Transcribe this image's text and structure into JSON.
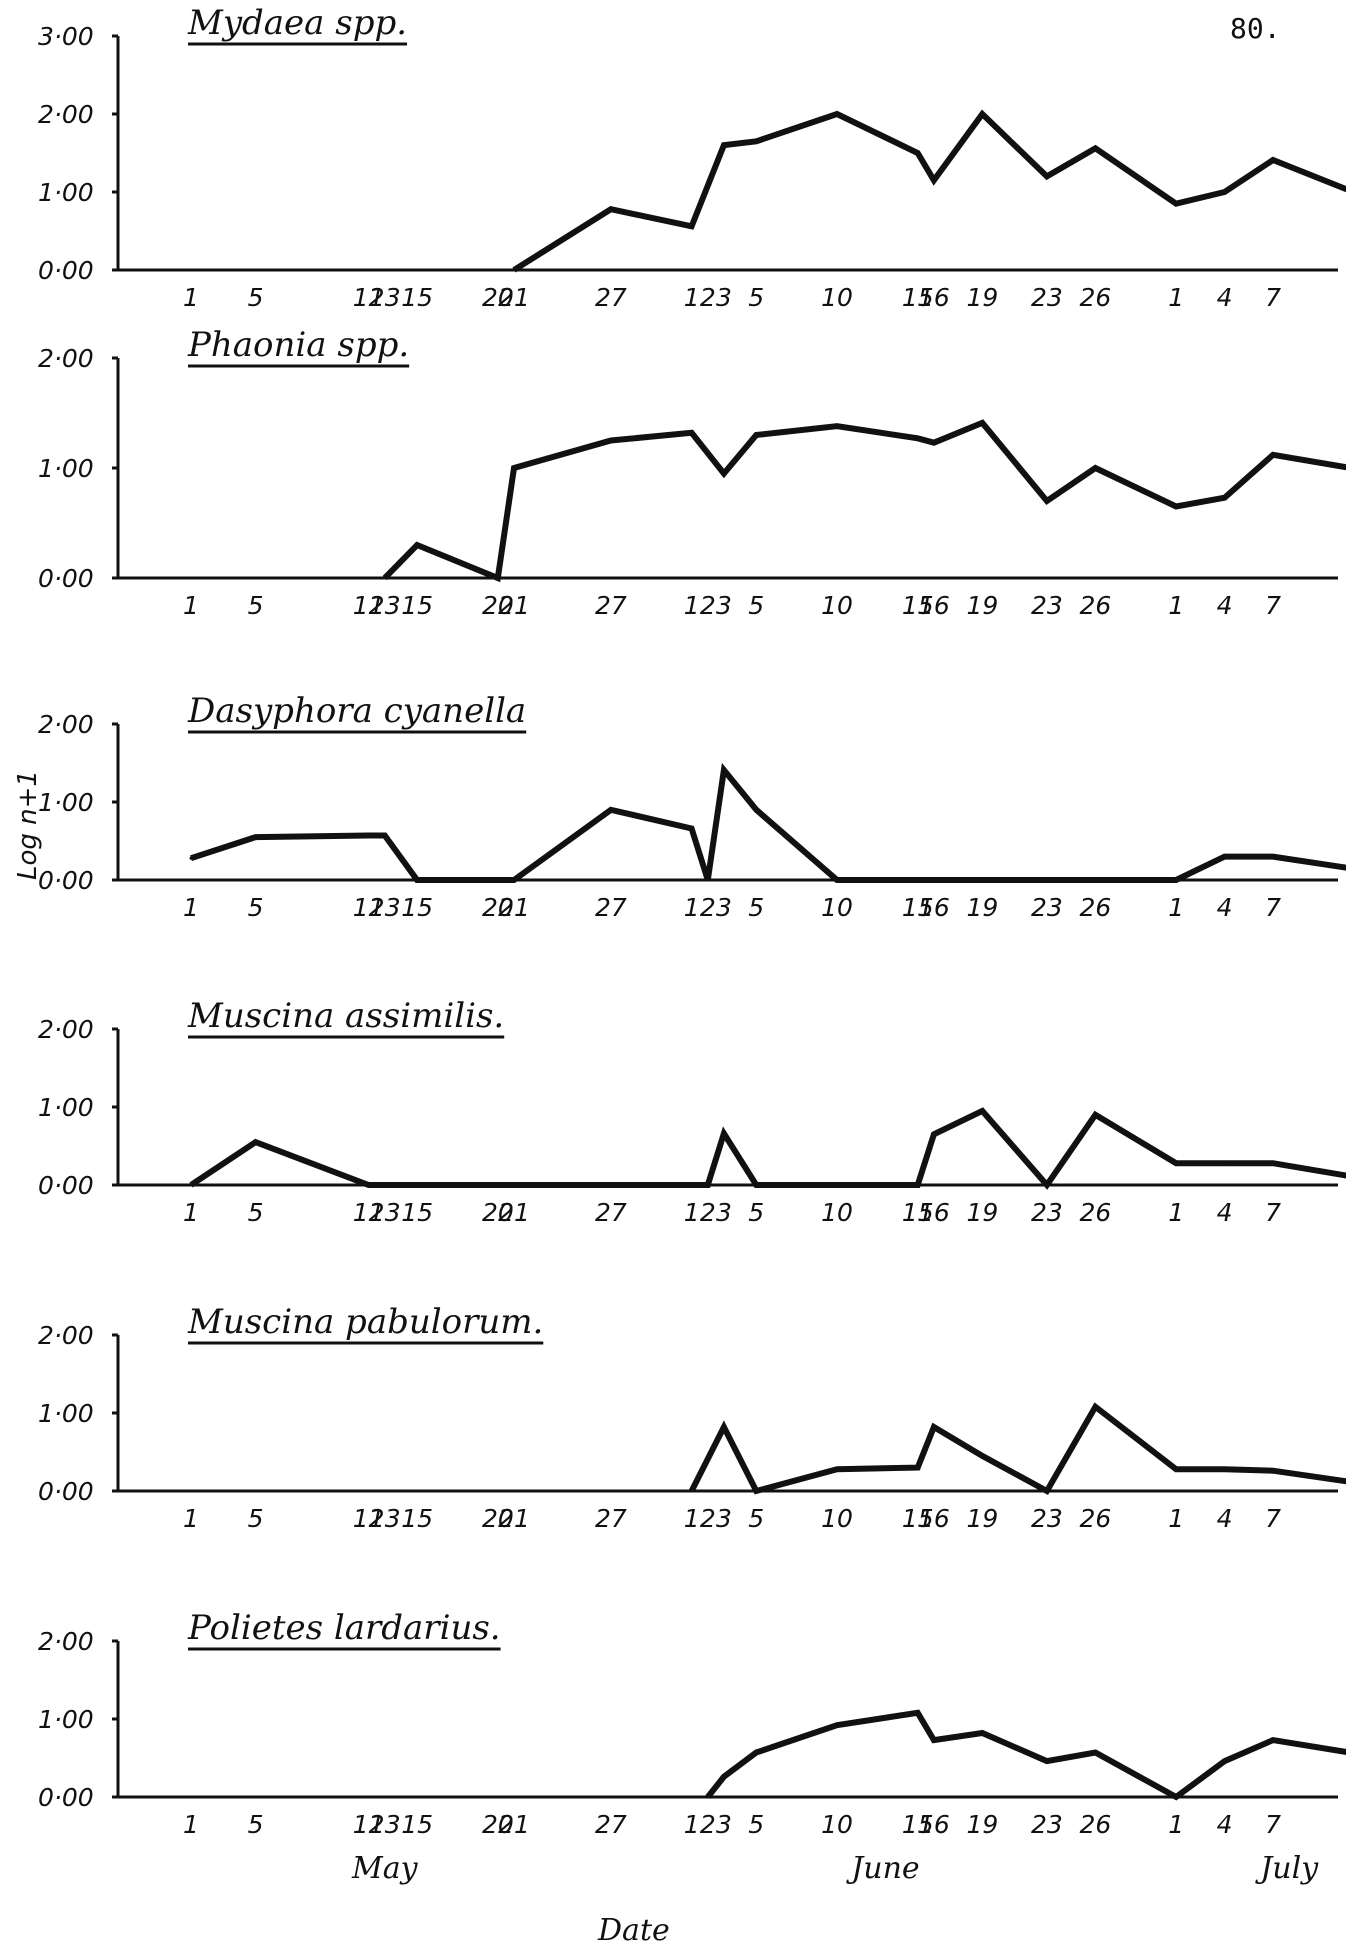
{
  "page_number": "80.",
  "y_axis_label": "Log n+1",
  "x_axis_label": "Date",
  "months": [
    "May",
    "June",
    "July"
  ],
  "chart_data": [
    {
      "type": "line",
      "title": "Mydaea spp.",
      "yticks": [
        "3·00",
        "2·00",
        "1·00",
        "0·00"
      ],
      "ylim": [
        0,
        3
      ],
      "x_tick_labels": [
        "1",
        "5",
        "12",
        "13",
        "15",
        "20",
        "21",
        "27",
        "1",
        "2",
        "3",
        "5",
        "10",
        "15",
        "16",
        "19",
        "23",
        "26",
        "1",
        "4",
        "7",
        "15"
      ],
      "points": [
        [
          "May 21",
          0.0
        ],
        [
          "May 27",
          0.78
        ],
        [
          "Jun 1",
          0.56
        ],
        [
          "Jun 3",
          1.6
        ],
        [
          "Jun 5",
          1.65
        ],
        [
          "Jun 10",
          2.0
        ],
        [
          "Jun 15",
          1.5
        ],
        [
          "Jun 16",
          1.15
        ],
        [
          "Jun 19",
          2.0
        ],
        [
          "Jun 23",
          1.2
        ],
        [
          "Jun 26",
          1.56
        ],
        [
          "Jul 1",
          0.85
        ],
        [
          "Jul 4",
          1.0
        ],
        [
          "Jul 7",
          1.41
        ],
        [
          "Jul 15",
          0.75
        ]
      ]
    },
    {
      "type": "line",
      "title": "Phaonia spp.",
      "yticks": [
        "2·00",
        "1·00",
        "0·00"
      ],
      "ylim": [
        0,
        2
      ],
      "x_tick_labels": [
        "1",
        "5",
        "12",
        "13",
        "15",
        "20",
        "21",
        "27",
        "1",
        "2",
        "3",
        "5",
        "10",
        "15",
        "16",
        "19",
        "23",
        "26",
        "1",
        "4",
        "7",
        "15"
      ],
      "points": [
        [
          "May 13",
          0.0
        ],
        [
          "May 15",
          0.3
        ],
        [
          "May 20",
          0.0
        ],
        [
          "May 21",
          1.0
        ],
        [
          "May 27",
          1.25
        ],
        [
          "Jun 1",
          1.32
        ],
        [
          "Jun 3",
          0.95
        ],
        [
          "Jun 5",
          1.3
        ],
        [
          "Jun 10",
          1.38
        ],
        [
          "Jun 15",
          1.27
        ],
        [
          "Jun 16",
          1.23
        ],
        [
          "Jun 19",
          1.41
        ],
        [
          "Jun 23",
          0.7
        ],
        [
          "Jun 26",
          1.0
        ],
        [
          "Jul 1",
          0.65
        ],
        [
          "Jul 4",
          0.73
        ],
        [
          "Jul 7",
          1.12
        ],
        [
          "Jul 15",
          0.92
        ]
      ]
    },
    {
      "type": "line",
      "title": "Dasyphora cyanella",
      "yticks": [
        "2·00",
        "1·00",
        "0·00"
      ],
      "ylim": [
        0,
        2
      ],
      "x_tick_labels": [
        "1",
        "5",
        "12",
        "13",
        "15",
        "20",
        "21",
        "27",
        "1",
        "2",
        "3",
        "5",
        "10",
        "15",
        "16",
        "19",
        "23",
        "26",
        "1",
        "4",
        "7",
        "15"
      ],
      "points": [
        [
          "May 1",
          0.28
        ],
        [
          "May 5",
          0.55
        ],
        [
          "May 12",
          0.57
        ],
        [
          "May 13",
          0.57
        ],
        [
          "May 15",
          0.0
        ],
        [
          "May 21",
          0.0
        ],
        [
          "May 27",
          0.9
        ],
        [
          "Jun 1",
          0.66
        ],
        [
          "Jun 2",
          0.0
        ],
        [
          "Jun 3",
          1.41
        ],
        [
          "Jun 5",
          0.9
        ],
        [
          "Jun 10",
          0.0
        ],
        [
          "Jul 1",
          0.0
        ],
        [
          "Jul 4",
          0.3
        ],
        [
          "Jul 7",
          0.3
        ],
        [
          "Jul 15",
          0.05
        ]
      ]
    },
    {
      "type": "line",
      "title": "Muscina assimilis.",
      "yticks": [
        "2·00",
        "1·00",
        "0·00"
      ],
      "ylim": [
        0,
        2
      ],
      "x_tick_labels": [
        "1",
        "5",
        "12",
        "13",
        "15",
        "20",
        "21",
        "27",
        "1",
        "2",
        "3",
        "5",
        "10",
        "15",
        "16",
        "19",
        "23",
        "26",
        "1",
        "4",
        "7",
        "15"
      ],
      "points": [
        [
          "May 1",
          0.0
        ],
        [
          "May 5",
          0.55
        ],
        [
          "May 12",
          0.0
        ],
        [
          "Jun 2",
          0.0
        ],
        [
          "Jun 3",
          0.66
        ],
        [
          "Jun 5",
          0.0
        ],
        [
          "Jun 15",
          0.0
        ],
        [
          "Jun 16",
          0.65
        ],
        [
          "Jun 19",
          0.95
        ],
        [
          "Jun 23",
          0.0
        ],
        [
          "Jun 26",
          0.9
        ],
        [
          "Jul 1",
          0.28
        ],
        [
          "Jul 4",
          0.28
        ],
        [
          "Jul 7",
          0.28
        ],
        [
          "Jul 15",
          0.0
        ]
      ]
    },
    {
      "type": "line",
      "title": "Muscina pabulorum.",
      "yticks": [
        "2·00",
        "1·00",
        "0·00"
      ],
      "ylim": [
        0,
        2
      ],
      "x_tick_labels": [
        "1",
        "5",
        "12",
        "13",
        "15",
        "20",
        "21",
        "27",
        "1",
        "2",
        "3",
        "5",
        "10",
        "15",
        "16",
        "19",
        "23",
        "26",
        "1",
        "4",
        "7",
        "15"
      ],
      "points": [
        [
          "Jun 1",
          0.0
        ],
        [
          "Jun 3",
          0.82
        ],
        [
          "Jun 5",
          0.0
        ],
        [
          "Jun 10",
          0.28
        ],
        [
          "Jun 15",
          0.3
        ],
        [
          "Jun 16",
          0.82
        ],
        [
          "Jun 19",
          0.45
        ],
        [
          "Jun 23",
          0.0
        ],
        [
          "Jun 26",
          1.08
        ],
        [
          "Jul 1",
          0.28
        ],
        [
          "Jul 4",
          0.28
        ],
        [
          "Jul 7",
          0.26
        ],
        [
          "Jul 15",
          0.02
        ]
      ]
    },
    {
      "type": "line",
      "title": "Polietes lardarius.",
      "yticks": [
        "2·00",
        "1·00",
        "0·00"
      ],
      "ylim": [
        0,
        2
      ],
      "x_tick_labels": [
        "1",
        "5",
        "12",
        "13",
        "15",
        "20",
        "21",
        "27",
        "1",
        "2",
        "3",
        "5",
        "10",
        "15",
        "16",
        "19",
        "23",
        "26",
        "1",
        "4",
        "7",
        "15"
      ],
      "points": [
        [
          "Jun 2",
          0.0
        ],
        [
          "Jun 3",
          0.26
        ],
        [
          "Jun 5",
          0.57
        ],
        [
          "Jun 10",
          0.92
        ],
        [
          "Jun 15",
          1.08
        ],
        [
          "Jun 16",
          0.73
        ],
        [
          "Jun 19",
          0.82
        ],
        [
          "Jun 23",
          0.46
        ],
        [
          "Jun 26",
          0.57
        ],
        [
          "Jul 1",
          0.0
        ],
        [
          "Jul 4",
          0.46
        ],
        [
          "Jul 7",
          0.73
        ],
        [
          "Jul 15",
          0.46
        ]
      ]
    }
  ]
}
